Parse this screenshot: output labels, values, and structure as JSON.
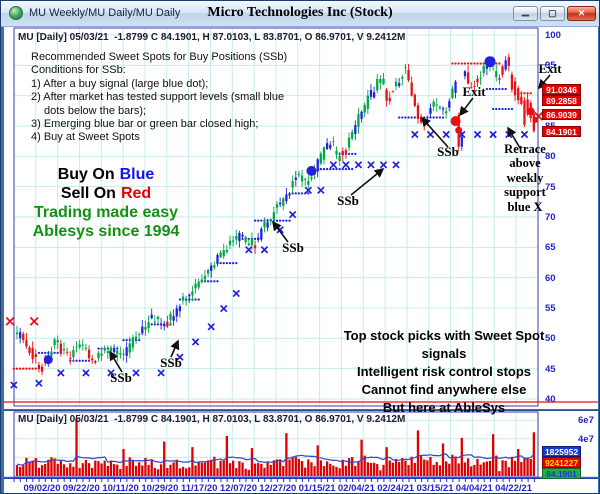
{
  "window": {
    "title_left": "MU Weekly/MU Daily/MU Daily",
    "title_center": "Micro Technologies Inc (Stock)",
    "buttons": {
      "minimize": "—",
      "maximize": "▢",
      "close": "✕"
    }
  },
  "main_chart": {
    "header": "MU [Daily] 05/03/21  -1.8799 C 84.1901, H 87.0103, L 83.8701, O 86.9701, V 9.2412M",
    "conditions": [
      "Recommended Sweet Spots for Buy Positions (SSb)",
      "Conditions for SSb:",
      "1) After a buy signal (large blue dot);",
      "2) After market has tested support levels (small blue",
      "dots below the bars);",
      "3) Emerging blue bar or green bar closed high;",
      "4) Buy at Sweet Spots"
    ],
    "promo": {
      "buy_prefix": "Buy On",
      "buy_word": "Blue",
      "sell_prefix": "Sell On",
      "sell_word": "Red",
      "line3": "Trading made easy",
      "line4": "Ablesys since 1994"
    },
    "bottom_promo": [
      "Top stock picks with Sweet Spot signals",
      "Intelligent risk control stops",
      "Cannot find anywhere else",
      "But here at AbleSys"
    ],
    "y_ticks": [
      100,
      95,
      90,
      85,
      80,
      75,
      70,
      65,
      60,
      55,
      50,
      45,
      40
    ],
    "price_tags": [
      "91.0346",
      "89.2858",
      "86.9039",
      "84.1901"
    ],
    "labels": {
      "ssb": "SSb",
      "exit": "Exit",
      "retrace": [
        "Retrace",
        "above",
        "weekly",
        "support",
        "blue X"
      ]
    }
  },
  "volume_chart": {
    "header": "MU [Daily] 05/03/21  -1.8799 C 84.1901, H 87.0103, L 83.8701, O 86.9701, V 9.2412M",
    "y_ticks": [
      "6e7",
      "4e7"
    ],
    "tags": {
      "blue": "1825952",
      "red": "9241227",
      "green": "84.1901"
    }
  },
  "x_axis": {
    "dates": [
      "09/02/20",
      "09/22/20",
      "10/11/20",
      "10/29/20",
      "11/17/20",
      "12/07/20",
      "12/27/20",
      "01/15/21",
      "02/04/21",
      "02/24/21",
      "03/15/21",
      "04/04/21",
      "04/22/21"
    ]
  },
  "chart_data": {
    "type": "candlestick",
    "symbol": "MU",
    "timeframe": "Daily",
    "last_quote": {
      "date": "05/03/21",
      "change": -1.8799,
      "close": 84.1901,
      "high": 87.0103,
      "low": 83.8701,
      "open": 86.9701,
      "volume": "9.2412M"
    },
    "price_axis": {
      "min": 40,
      "max": 100,
      "step": 5
    },
    "n_bars": 166,
    "price_waypoints": [
      [
        0,
        51.5
      ],
      [
        0.02,
        49.2
      ],
      [
        0.05,
        44.8
      ],
      [
        0.075,
        49.3
      ],
      [
        0.1,
        47.2
      ],
      [
        0.125,
        48.6
      ],
      [
        0.15,
        46.6
      ],
      [
        0.175,
        48.2
      ],
      [
        0.205,
        47.2
      ],
      [
        0.235,
        50.2
      ],
      [
        0.265,
        53.4
      ],
      [
        0.29,
        52.2
      ],
      [
        0.32,
        55.8
      ],
      [
        0.35,
        58.6
      ],
      [
        0.38,
        61.8
      ],
      [
        0.41,
        65.2
      ],
      [
        0.435,
        66.8
      ],
      [
        0.46,
        65.2
      ],
      [
        0.49,
        69.8
      ],
      [
        0.52,
        72.8
      ],
      [
        0.545,
        76.8
      ],
      [
        0.565,
        75.4
      ],
      [
        0.59,
        79.8
      ],
      [
        0.61,
        82.4
      ],
      [
        0.628,
        79.6
      ],
      [
        0.648,
        83.0
      ],
      [
        0.665,
        86.6
      ],
      [
        0.685,
        89.8
      ],
      [
        0.705,
        92.8
      ],
      [
        0.72,
        89.4
      ],
      [
        0.74,
        92.2
      ],
      [
        0.755,
        94.8
      ],
      [
        0.775,
        87.6
      ],
      [
        0.79,
        84.8
      ],
      [
        0.81,
        88.8
      ],
      [
        0.83,
        87.2
      ],
      [
        0.85,
        91.8
      ],
      [
        0.865,
        94.4
      ],
      [
        0.882,
        90.6
      ],
      [
        0.9,
        93.4
      ],
      [
        0.918,
        95.8
      ],
      [
        0.934,
        92.8
      ],
      [
        0.95,
        96.2
      ],
      [
        0.966,
        90.8
      ],
      [
        0.982,
        87.4
      ],
      [
        1,
        84.6
      ]
    ],
    "bar_overrides": {
      "141": [
        86.8,
        87.2,
        80.8,
        81.6
      ],
      "142": [
        81.6,
        84.0,
        80.9,
        83.2
      ],
      "158": [
        93.5,
        94.0,
        90.5,
        91.0
      ],
      "162": [
        85.2,
        89.8,
        84.8,
        89.2
      ],
      "163": [
        89.4,
        90.4,
        86.6,
        87.0
      ],
      "164": [
        88.8,
        89.2,
        85.6,
        86.3
      ],
      "165": [
        86.9701,
        87.0103,
        83.8701,
        84.1901
      ]
    },
    "volume_spikes": {
      "19": 6.2,
      "34": 2.9,
      "47": 3.7,
      "56": 3.1,
      "67": 4.3,
      "75": 3.0,
      "86": 4.6,
      "96": 3.3,
      "110": 3.9,
      "118": 3.1,
      "128": 4.9,
      "136": 3.5,
      "142": 4.1,
      "152": 4.5,
      "160": 2.9,
      "165": 4.7
    },
    "blue_x": [
      [
        -1,
        42.3
      ],
      [
        7,
        42.6
      ],
      [
        14,
        44.3
      ],
      [
        22,
        44.3
      ],
      [
        30,
        44.3
      ],
      [
        38,
        44.3
      ],
      [
        46,
        44.3
      ],
      [
        52,
        46.9
      ],
      [
        57,
        49.4
      ],
      [
        62,
        51.9
      ],
      [
        66,
        54.9
      ],
      [
        70,
        57.4
      ],
      [
        74,
        64.6
      ],
      [
        79,
        64.6
      ],
      [
        84,
        67.9
      ],
      [
        88,
        70.4
      ],
      [
        93,
        74.4
      ],
      [
        97,
        74.4
      ],
      [
        101,
        78.6
      ],
      [
        105,
        78.6
      ],
      [
        109,
        78.6
      ],
      [
        113,
        78.6
      ],
      [
        117,
        78.6
      ],
      [
        121,
        78.6
      ],
      [
        127,
        83.6
      ],
      [
        132,
        83.6
      ],
      [
        137,
        83.6
      ],
      [
        142,
        83.6
      ],
      [
        147,
        83.6
      ],
      [
        152,
        83.6
      ],
      [
        157,
        83.6
      ],
      [
        162,
        83.6
      ]
    ],
    "red_x": [
      [
        -2.2,
        52.8
      ],
      [
        5.5,
        52.8
      ],
      [
        166.5,
        86.6
      ]
    ],
    "dot_rows": [
      [
        -1,
        6,
        45.0,
        "r"
      ],
      [
        7,
        13,
        47.6,
        "b"
      ],
      [
        17,
        23,
        46.3,
        "b"
      ],
      [
        26,
        32,
        48.3,
        "b"
      ],
      [
        34,
        39,
        49.7,
        "b"
      ],
      [
        43,
        49,
        52.3,
        "b"
      ],
      [
        52,
        58,
        56.4,
        "b"
      ],
      [
        59,
        64,
        59.4,
        "b"
      ],
      [
        64,
        70,
        62.4,
        "b"
      ],
      [
        71,
        78,
        66.4,
        "b"
      ],
      [
        76,
        87,
        69.4,
        "b"
      ],
      [
        88,
        93,
        73.9,
        "b"
      ],
      [
        96,
        107,
        77.9,
        "b"
      ],
      [
        103,
        108,
        80.4,
        "b"
      ],
      [
        122,
        136,
        86.4,
        "b"
      ],
      [
        139,
        154,
        95.3,
        "r"
      ],
      [
        150,
        156,
        91.1,
        "b"
      ],
      [
        152,
        158,
        87.8,
        "b"
      ],
      [
        159,
        164,
        90.4,
        "r"
      ]
    ],
    "big_dots_blue": [
      [
        10,
        46.5,
        4.5
      ],
      [
        94,
        77.6,
        5
      ],
      [
        151,
        95.6,
        5.5
      ]
    ],
    "big_dots_red": [
      [
        140,
        85.8,
        5
      ],
      [
        141,
        84.3,
        3.5
      ],
      [
        164,
        87.4,
        4
      ],
      [
        165.5,
        86.0,
        3
      ]
    ]
  }
}
